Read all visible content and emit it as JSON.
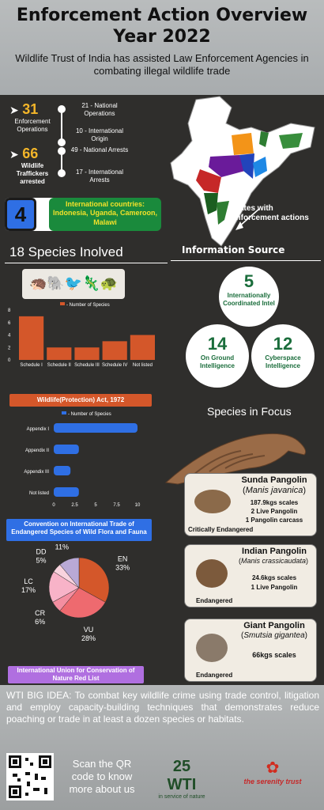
{
  "header": {
    "title_line1": "Enforcement Action Overview",
    "title_line2": "Year 2022",
    "subtitle": "Wildlife Trust of India has assisted Law Enforcement Agencies in combating illegal wildlife trade"
  },
  "stats": {
    "enforcement_count": "31",
    "enforcement_label": "Enforcement Operations",
    "national_ops": "21 - National Operations",
    "intl_origin": "10 - International Origin",
    "traffickers_count": "66",
    "traffickers_label": "Wildlife Traffickers arrested",
    "national_arrests": "49 - National Arrests",
    "intl_arrests": "17 - International Arrests"
  },
  "countries": {
    "count": "4",
    "label": "International countries:",
    "list": "Indonesia, Uganda, Cameroon, Malawi"
  },
  "map": {
    "caption": "States with enforcement actions"
  },
  "species_title": "18 Species Inolved",
  "schedule_chart": {
    "type": "bar",
    "legend": "- Number of Species",
    "categories": [
      "Schedule I",
      "Schedule II",
      "Schedule III",
      "Schedule IV",
      "Not listed"
    ],
    "values": [
      7,
      2,
      2,
      3,
      4
    ],
    "ylim": [
      0,
      8
    ],
    "yticks": [
      "0",
      "2",
      "4",
      "6",
      "8"
    ],
    "color": "#d4572a",
    "ribbon": "Wildlife(Protection) Act, 1972"
  },
  "cites_chart": {
    "type": "bar",
    "legend": "- Number of Species",
    "categories": [
      "Appendix I",
      "Appendix II",
      "Appendix III",
      "Not listed"
    ],
    "values": [
      10,
      3,
      2,
      3
    ],
    "xlim": [
      0,
      10
    ],
    "xticks": [
      "0",
      "2.5",
      "5",
      "7.5",
      "10"
    ],
    "color": "#2f6fe4",
    "ribbon": "Convention on International Trade of Endangered Species of Wild Flora and Fauna"
  },
  "iucn_chart": {
    "type": "pie",
    "labels": [
      "EN",
      "VU",
      "CR",
      "LC",
      "DD",
      "NT"
    ],
    "values": [
      33,
      28,
      6,
      17,
      5,
      11
    ],
    "display": [
      "EN\n33%",
      "VU\n28%",
      "CR\n6%",
      "LC\n17%",
      "DD\n5%",
      "NT\n11%"
    ],
    "colors": [
      "#d4572a",
      "#ee6a6f",
      "#f48ea0",
      "#f8b3c8",
      "#f9d3de",
      "#b9a9d6"
    ],
    "ribbon": "International Union for Conservation of Nature Red List"
  },
  "info_source": {
    "title": "Information Source",
    "intel_count": "5",
    "intel_label": "Internationally Coordinated Intel",
    "ground_count": "14",
    "ground_label": "On Ground Intelligence",
    "cyber_count": "12",
    "cyber_label": "Cyberspace Intelligence"
  },
  "focus": {
    "title": "Species in Focus",
    "sunda": {
      "name": "Sunda Pangolin",
      "sci": "Manis javanica",
      "line1": "187.9kgs scales",
      "line2": "2 Live  Pangolin",
      "line3": "1 Pangolin carcass",
      "status": "Critically Endangered"
    },
    "indian": {
      "name": "Indian Pangolin",
      "sci": "Manis crassicaudata",
      "line1": "24.6kgs scales",
      "line2": "1 Live Pangolin",
      "status": "Endangered"
    },
    "giant": {
      "name": "Giant Pangolin",
      "sci": "Smutsia gigantea",
      "line1": "66kgs scales",
      "status": "Endangered"
    }
  },
  "footer": {
    "big_idea": "WTI BIG IDEA: To combat key wildlife crime using trade control, litigation and employ capacity-building techniques that demonstrates reduce poaching or trade in at least a dozen species or habitats.",
    "qr_text": "Scan the QR code to know more about us",
    "wti_logo": "25 WTI",
    "wti_tag": "in service of nature",
    "serenity_logo": "the serenity trust"
  }
}
